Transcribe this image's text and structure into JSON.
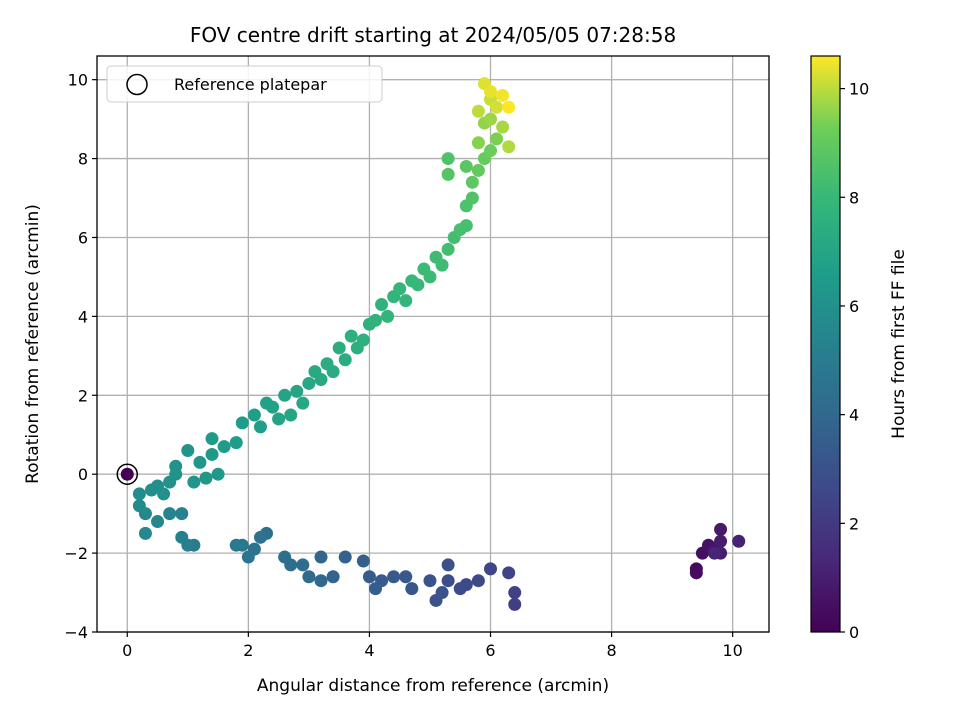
{
  "chart_data": {
    "type": "scatter",
    "title": "FOV centre drift starting at 2024/05/05 07:28:58",
    "xlabel": "Angular distance from reference (arcmin)",
    "ylabel": "Rotation from reference (arcmin)",
    "xlim": [
      -0.5,
      10.6
    ],
    "ylim": [
      -4.0,
      10.6
    ],
    "xticks": [
      0,
      2,
      4,
      6,
      8,
      10
    ],
    "yticks": [
      -4,
      -2,
      0,
      2,
      4,
      6,
      8,
      10
    ],
    "grid": true,
    "legend": {
      "placement": "top-left",
      "entries": [
        "Reference platepar"
      ]
    },
    "reference_point": {
      "x": 0,
      "y": 0
    },
    "colorbar": {
      "label": "Hours from first FF file",
      "range": [
        0,
        10.6
      ],
      "ticks": [
        0,
        2,
        4,
        6,
        8,
        10
      ],
      "colormap": "viridis"
    },
    "series": [
      {
        "segment": "early-right-cluster",
        "points": [
          [
            0.0,
            0.0,
            0.0
          ],
          [
            9.4,
            -2.4,
            0.3
          ],
          [
            9.4,
            -2.5,
            0.4
          ],
          [
            9.5,
            -2.0,
            0.5
          ],
          [
            9.6,
            -1.8,
            0.6
          ],
          [
            9.7,
            -1.9,
            0.7
          ],
          [
            9.8,
            -1.4,
            0.8
          ],
          [
            9.8,
            -1.7,
            0.9
          ],
          [
            9.8,
            -2.0,
            1.0
          ],
          [
            10.1,
            -1.7,
            1.1
          ],
          [
            9.7,
            -2.0,
            1.2
          ]
        ]
      },
      {
        "segment": "lower-band",
        "points": [
          [
            6.4,
            -3.3,
            2.2
          ],
          [
            6.4,
            -3.0,
            2.3
          ],
          [
            6.3,
            -2.5,
            2.4
          ],
          [
            6.0,
            -2.4,
            2.5
          ],
          [
            5.8,
            -2.7,
            2.6
          ],
          [
            5.6,
            -2.8,
            2.6
          ],
          [
            5.5,
            -2.9,
            2.7
          ],
          [
            5.3,
            -2.7,
            2.8
          ],
          [
            5.3,
            -2.3,
            2.9
          ],
          [
            5.2,
            -3.0,
            3.0
          ],
          [
            5.1,
            -3.2,
            3.0
          ],
          [
            5.0,
            -2.7,
            3.1
          ],
          [
            4.7,
            -2.9,
            3.2
          ],
          [
            4.6,
            -2.6,
            3.3
          ],
          [
            4.4,
            -2.6,
            3.3
          ],
          [
            4.2,
            -2.7,
            3.4
          ],
          [
            4.1,
            -2.9,
            3.5
          ],
          [
            4.0,
            -2.6,
            3.5
          ],
          [
            3.9,
            -2.2,
            3.6
          ],
          [
            3.6,
            -2.1,
            3.7
          ],
          [
            3.4,
            -2.6,
            3.8
          ],
          [
            3.2,
            -2.1,
            3.9
          ],
          [
            3.2,
            -2.7,
            4.0
          ],
          [
            3.0,
            -2.6,
            4.1
          ],
          [
            2.9,
            -2.3,
            4.2
          ],
          [
            2.7,
            -2.3,
            4.3
          ],
          [
            2.6,
            -2.1,
            4.4
          ],
          [
            2.3,
            -1.5,
            4.4
          ],
          [
            2.2,
            -1.6,
            4.5
          ],
          [
            2.1,
            -1.9,
            4.6
          ],
          [
            2.0,
            -2.1,
            4.7
          ],
          [
            1.9,
            -1.8,
            4.8
          ],
          [
            1.8,
            -1.8,
            4.9
          ]
        ]
      },
      {
        "segment": "return-to-origin",
        "points": [
          [
            1.1,
            -1.8,
            5.0
          ],
          [
            1.0,
            -1.8,
            5.1
          ],
          [
            0.9,
            -1.6,
            5.2
          ],
          [
            0.9,
            -1.0,
            5.3
          ],
          [
            0.7,
            -1.0,
            5.4
          ],
          [
            0.5,
            -1.2,
            5.5
          ],
          [
            0.3,
            -1.0,
            5.6
          ],
          [
            0.3,
            -1.5,
            5.6
          ],
          [
            0.2,
            -0.8,
            5.7
          ],
          [
            0.2,
            -0.5,
            5.8
          ],
          [
            0.4,
            -0.4,
            5.9
          ],
          [
            0.5,
            -0.3,
            5.9
          ],
          [
            0.6,
            -0.5,
            6.0
          ],
          [
            0.7,
            -0.2,
            6.0
          ],
          [
            0.8,
            0.0,
            6.1
          ],
          [
            0.8,
            0.2,
            6.1
          ],
          [
            1.0,
            0.6,
            6.2
          ],
          [
            1.1,
            -0.2,
            6.2
          ],
          [
            1.2,
            0.3,
            6.3
          ],
          [
            1.3,
            -0.1,
            6.3
          ],
          [
            1.4,
            0.5,
            6.4
          ],
          [
            1.5,
            0.0,
            6.4
          ],
          [
            1.4,
            0.9,
            6.5
          ],
          [
            1.6,
            0.7,
            6.5
          ],
          [
            1.8,
            0.8,
            6.6
          ],
          [
            1.9,
            1.3,
            6.6
          ]
        ]
      },
      {
        "segment": "rising-diagonal",
        "points": [
          [
            2.1,
            1.5,
            6.7
          ],
          [
            2.2,
            1.2,
            6.7
          ],
          [
            2.4,
            1.7,
            6.8
          ],
          [
            2.3,
            1.8,
            6.8
          ],
          [
            2.5,
            1.4,
            6.9
          ],
          [
            2.6,
            2.0,
            6.9
          ],
          [
            2.7,
            1.5,
            7.0
          ],
          [
            2.8,
            2.1,
            7.0
          ],
          [
            2.9,
            1.8,
            7.1
          ],
          [
            3.0,
            2.3,
            7.1
          ],
          [
            3.1,
            2.6,
            7.2
          ],
          [
            3.2,
            2.4,
            7.2
          ],
          [
            3.3,
            2.8,
            7.3
          ],
          [
            3.4,
            2.6,
            7.3
          ],
          [
            3.5,
            3.2,
            7.4
          ],
          [
            3.6,
            2.9,
            7.4
          ],
          [
            3.7,
            3.5,
            7.5
          ],
          [
            3.8,
            3.2,
            7.5
          ],
          [
            3.9,
            3.4,
            7.6
          ],
          [
            4.0,
            3.8,
            7.6
          ],
          [
            4.1,
            3.9,
            7.7
          ],
          [
            4.2,
            4.3,
            7.7
          ],
          [
            4.3,
            4.0,
            7.8
          ],
          [
            4.4,
            4.5,
            7.8
          ],
          [
            4.5,
            4.7,
            7.9
          ],
          [
            4.6,
            4.4,
            7.9
          ],
          [
            4.7,
            4.9,
            8.0
          ],
          [
            4.8,
            4.8,
            8.0
          ],
          [
            4.9,
            5.2,
            8.1
          ],
          [
            5.0,
            5.0,
            8.1
          ],
          [
            5.1,
            5.5,
            8.2
          ],
          [
            5.2,
            5.3,
            8.2
          ],
          [
            5.3,
            5.7,
            8.3
          ],
          [
            5.4,
            6.0,
            8.3
          ],
          [
            5.5,
            6.2,
            8.4
          ],
          [
            5.6,
            6.3,
            8.4
          ],
          [
            5.6,
            6.8,
            8.5
          ],
          [
            5.7,
            7.0,
            8.6
          ]
        ]
      },
      {
        "segment": "top-cluster",
        "points": [
          [
            5.3,
            8.0,
            8.6
          ],
          [
            5.3,
            7.6,
            8.7
          ],
          [
            5.6,
            7.8,
            8.8
          ],
          [
            5.7,
            7.4,
            8.9
          ],
          [
            5.8,
            7.7,
            9.0
          ],
          [
            5.9,
            8.0,
            9.1
          ],
          [
            6.0,
            8.2,
            9.2
          ],
          [
            6.1,
            8.5,
            9.4
          ],
          [
            5.8,
            8.4,
            9.5
          ],
          [
            5.9,
            8.9,
            9.6
          ],
          [
            6.0,
            9.0,
            9.7
          ],
          [
            6.2,
            8.8,
            9.8
          ],
          [
            6.3,
            8.3,
            9.9
          ],
          [
            5.8,
            9.2,
            10.0
          ],
          [
            6.0,
            9.5,
            10.1
          ],
          [
            6.1,
            9.3,
            10.2
          ],
          [
            5.9,
            9.9,
            10.3
          ],
          [
            6.0,
            9.7,
            10.4
          ],
          [
            6.2,
            9.6,
            10.5
          ],
          [
            6.3,
            9.3,
            10.6
          ]
        ]
      }
    ]
  }
}
